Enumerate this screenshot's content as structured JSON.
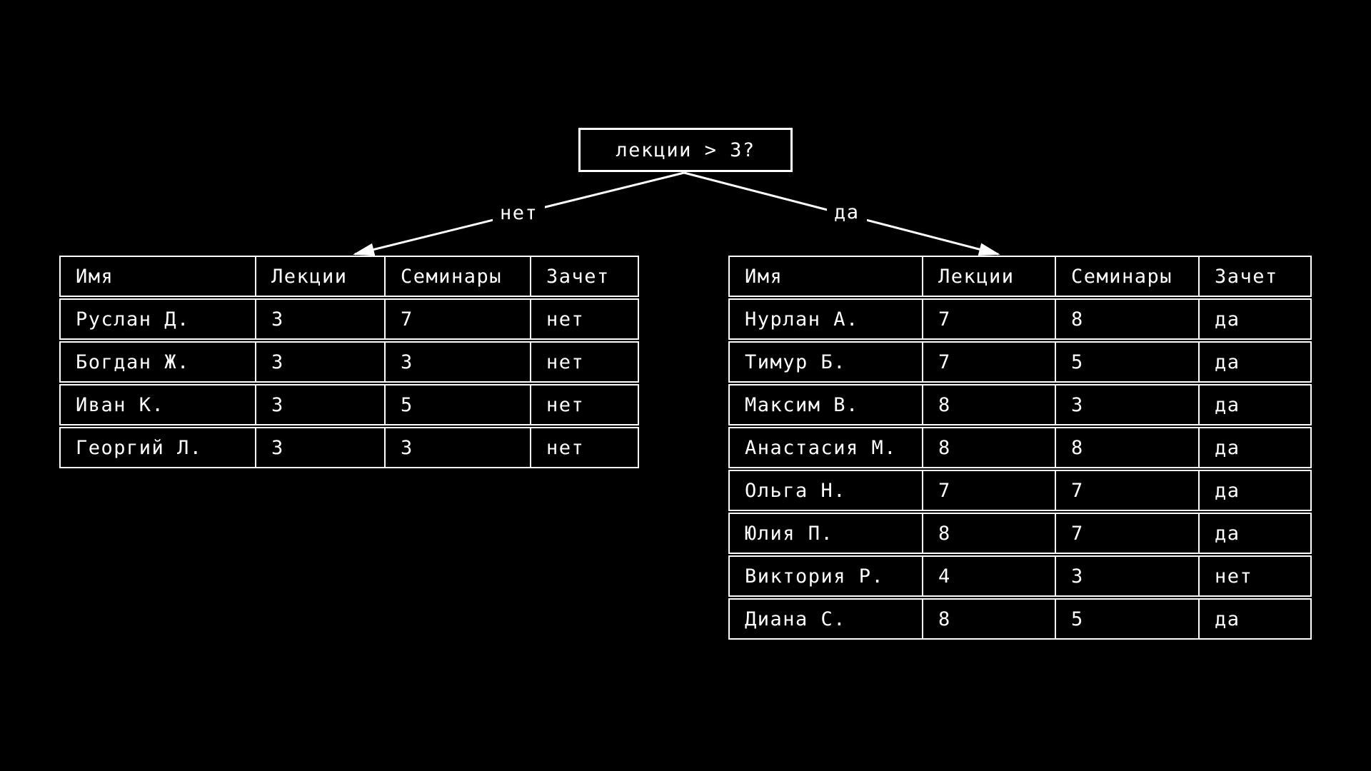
{
  "colors": {
    "background": "#000000",
    "foreground": "#ffffff"
  },
  "tree": {
    "root_label": "лекции > 3?",
    "branches": {
      "no": "нет",
      "yes": "да"
    }
  },
  "tables": {
    "columns": [
      "Имя",
      "Лекции",
      "Семинары",
      "Зачет"
    ],
    "left": {
      "rows": [
        [
          "Руслан Д.",
          "3",
          "7",
          "нет"
        ],
        [
          "Богдан Ж.",
          "3",
          "3",
          "нет"
        ],
        [
          "Иван К.",
          "3",
          "5",
          "нет"
        ],
        [
          "Георгий Л.",
          "3",
          "3",
          "нет"
        ]
      ]
    },
    "right": {
      "rows": [
        [
          "Нурлан А.",
          "7",
          "8",
          "да"
        ],
        [
          "Тимур Б.",
          "7",
          "5",
          "да"
        ],
        [
          "Максим В.",
          "8",
          "3",
          "да"
        ],
        [
          "Анастасия М.",
          "8",
          "8",
          "да"
        ],
        [
          "Ольга Н.",
          "7",
          "7",
          "да"
        ],
        [
          "Юлия П.",
          "8",
          "7",
          "да"
        ],
        [
          "Виктория Р.",
          "4",
          "3",
          "нет"
        ],
        [
          "Диана С.",
          "8",
          "5",
          "да"
        ]
      ]
    }
  }
}
